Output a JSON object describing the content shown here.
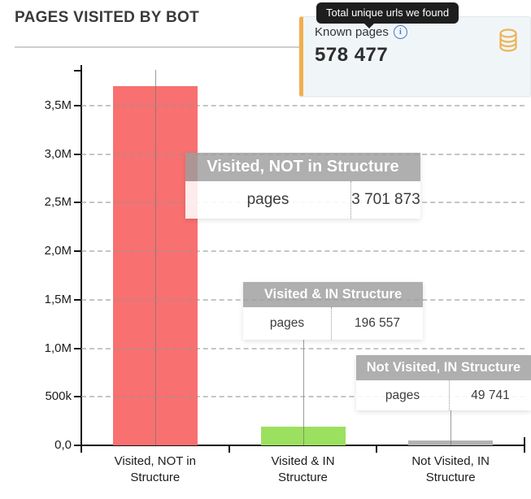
{
  "page": {
    "title": "PAGES VISITED BY BOT"
  },
  "top_tooltip": {
    "text": "Total unique urls we found"
  },
  "known_pages_card": {
    "label": "Known pages",
    "value": "578 477",
    "accent_color": "#f2ae4e",
    "background_color": "#f0f6f8",
    "info_icon": "info-icon",
    "db_icon": "database-icon",
    "info_glyph": "i"
  },
  "chart_data": {
    "type": "bar",
    "title": "PAGES VISITED BY BOT",
    "categories": [
      "Visited, NOT in Structure",
      "Visited & IN Structure",
      "Not Visited, IN Structure"
    ],
    "values": [
      3701873,
      196557,
      49741
    ],
    "bar_colors": [
      "#f87070",
      "#9ce05f",
      "#b3b3b3"
    ],
    "xlabel": "",
    "ylabel": "pages",
    "ylim": [
      0,
      3920000
    ],
    "grid": true,
    "ytick_labels": [
      "0,0",
      "500k",
      "1,0M",
      "1,5M",
      "2,0M",
      "2,5M",
      "3,0M",
      "3,5M"
    ],
    "ytick_values": [
      0,
      500000,
      1000000,
      1500000,
      2000000,
      2500000,
      3000000,
      3500000
    ],
    "tooltips": [
      {
        "title": "Visited, NOT in Structure",
        "label": "pages",
        "value": "3 701 873"
      },
      {
        "title": "Visited & IN Structure",
        "label": "pages",
        "value": "196 557"
      },
      {
        "title": "Not Visited, IN Structure",
        "label": "pages",
        "value": "49 741"
      }
    ]
  }
}
